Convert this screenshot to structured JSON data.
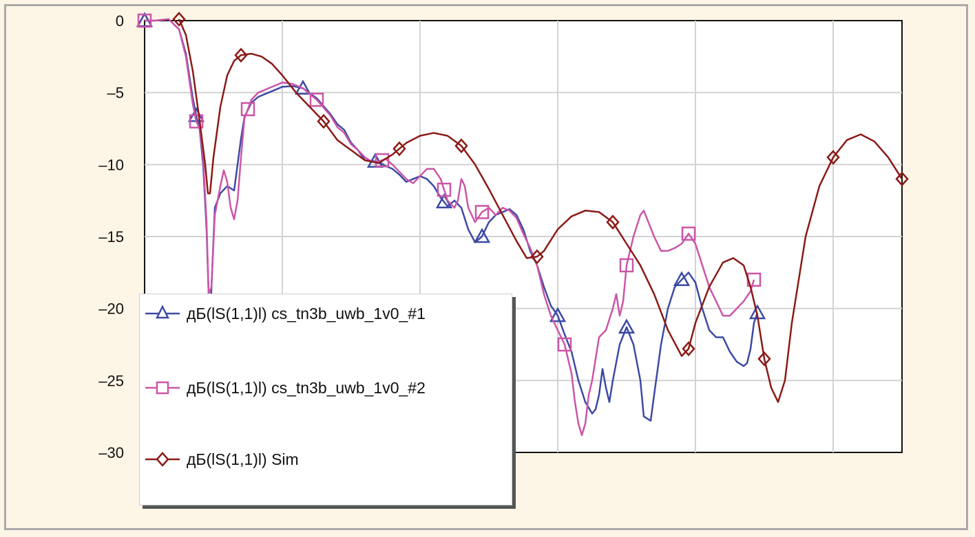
{
  "chart_data": {
    "type": "line",
    "title": "",
    "xlabel": "",
    "ylabel": "",
    "ylim": [
      -30,
      0
    ],
    "yticks": [
      0,
      -5,
      -10,
      -15,
      -20,
      -25,
      -30
    ],
    "ytick_labels": [
      "0",
      "–5",
      "–10",
      "–15",
      "–20",
      "–25",
      "–30"
    ],
    "x_domain": [
      0,
      11
    ],
    "x_ticks_unlabeled": [
      0,
      2,
      4,
      6,
      8,
      10
    ],
    "grid": true,
    "legend_position": "lower-left",
    "series": [
      {
        "name": "дБ(lS(1,1)l) cs_tn3b_uwb_1v0_#1",
        "color": "#3c4aa4",
        "marker": "triangle",
        "points": [
          [
            0.0,
            0.0
          ],
          [
            0.15,
            0.0
          ],
          [
            0.35,
            0.1
          ],
          [
            0.5,
            -0.6
          ],
          [
            0.6,
            -2.3
          ],
          [
            0.7,
            -5.4
          ],
          [
            0.75,
            -6.6
          ],
          [
            0.8,
            -7.6
          ],
          [
            0.85,
            -10.0
          ],
          [
            0.9,
            -14.5
          ],
          [
            0.93,
            -19.0
          ],
          [
            0.95,
            -21.0
          ],
          [
            0.98,
            -17.5
          ],
          [
            1.02,
            -13.0
          ],
          [
            1.1,
            -12.0
          ],
          [
            1.2,
            -11.5
          ],
          [
            1.3,
            -11.8
          ],
          [
            1.35,
            -10.0
          ],
          [
            1.4,
            -8.2
          ],
          [
            1.45,
            -6.7
          ],
          [
            1.55,
            -5.7
          ],
          [
            1.65,
            -5.3
          ],
          [
            1.8,
            -5.0
          ],
          [
            2.0,
            -4.6
          ],
          [
            2.15,
            -4.55
          ],
          [
            2.3,
            -4.7
          ],
          [
            2.5,
            -5.4
          ],
          [
            2.7,
            -6.5
          ],
          [
            2.8,
            -7.2
          ],
          [
            2.9,
            -7.6
          ],
          [
            3.0,
            -8.5
          ],
          [
            3.1,
            -9.0
          ],
          [
            3.2,
            -9.7
          ],
          [
            3.4,
            -9.8
          ],
          [
            3.5,
            -10.1
          ],
          [
            3.6,
            -10.3
          ],
          [
            3.7,
            -10.7
          ],
          [
            3.8,
            -11.2
          ],
          [
            3.9,
            -11.0
          ],
          [
            4.0,
            -10.8
          ],
          [
            4.1,
            -11.0
          ],
          [
            4.2,
            -11.5
          ],
          [
            4.3,
            -12.3
          ],
          [
            4.4,
            -12.9
          ],
          [
            4.5,
            -12.5
          ],
          [
            4.6,
            -13.0
          ],
          [
            4.7,
            -14.5
          ],
          [
            4.8,
            -15.4
          ],
          [
            4.9,
            -15.0
          ],
          [
            5.0,
            -14.0
          ],
          [
            5.1,
            -13.5
          ],
          [
            5.2,
            -13.3
          ],
          [
            5.3,
            -13.1
          ],
          [
            5.4,
            -13.5
          ],
          [
            5.5,
            -14.5
          ],
          [
            5.6,
            -16.0
          ],
          [
            5.7,
            -17.0
          ],
          [
            5.8,
            -18.5
          ],
          [
            5.9,
            -19.8
          ],
          [
            6.0,
            -20.5
          ],
          [
            6.1,
            -21.8
          ],
          [
            6.2,
            -23.0
          ],
          [
            6.3,
            -25.0
          ],
          [
            6.4,
            -26.5
          ],
          [
            6.5,
            -27.3
          ],
          [
            6.55,
            -27.0
          ],
          [
            6.6,
            -26.0
          ],
          [
            6.65,
            -24.2
          ],
          [
            6.7,
            -25.5
          ],
          [
            6.75,
            -26.5
          ],
          [
            6.8,
            -25.0
          ],
          [
            6.9,
            -22.5
          ],
          [
            7.0,
            -21.3
          ],
          [
            7.1,
            -22.5
          ],
          [
            7.2,
            -25.0
          ],
          [
            7.25,
            -27.5
          ],
          [
            7.35,
            -27.8
          ],
          [
            7.4,
            -26.0
          ],
          [
            7.5,
            -22.5
          ],
          [
            7.6,
            -20.0
          ],
          [
            7.7,
            -18.5
          ],
          [
            7.8,
            -18.0
          ],
          [
            7.9,
            -17.5
          ],
          [
            8.0,
            -18.2
          ],
          [
            8.1,
            -20.0
          ],
          [
            8.2,
            -21.5
          ],
          [
            8.3,
            -22.0
          ],
          [
            8.4,
            -22.0
          ],
          [
            8.5,
            -23.0
          ],
          [
            8.6,
            -23.7
          ],
          [
            8.7,
            -24.0
          ],
          [
            8.75,
            -23.8
          ],
          [
            8.8,
            -22.8
          ],
          [
            8.85,
            -21.0
          ],
          [
            8.9,
            -20.3
          ]
        ]
      },
      {
        "name": "дБ(lS(1,1)l) cs_tn3b_uwb_1v0_#2",
        "color": "#cc55a6",
        "marker": "square",
        "points": [
          [
            0.0,
            0.0
          ],
          [
            0.15,
            0.0
          ],
          [
            0.35,
            0.1
          ],
          [
            0.5,
            -0.6
          ],
          [
            0.6,
            -2.5
          ],
          [
            0.7,
            -5.8
          ],
          [
            0.75,
            -7.0
          ],
          [
            0.8,
            -7.5
          ],
          [
            0.85,
            -9.5
          ],
          [
            0.9,
            -14.0
          ],
          [
            0.93,
            -19.0
          ],
          [
            0.97,
            -18.5
          ],
          [
            1.02,
            -13.5
          ],
          [
            1.1,
            -11.5
          ],
          [
            1.15,
            -10.4
          ],
          [
            1.2,
            -11.2
          ],
          [
            1.25,
            -13.0
          ],
          [
            1.3,
            -13.8
          ],
          [
            1.35,
            -12.5
          ],
          [
            1.4,
            -9.5
          ],
          [
            1.45,
            -6.8
          ],
          [
            1.55,
            -5.5
          ],
          [
            1.65,
            -5.0
          ],
          [
            1.8,
            -4.7
          ],
          [
            2.0,
            -4.3
          ],
          [
            2.15,
            -4.4
          ],
          [
            2.3,
            -4.7
          ],
          [
            2.5,
            -5.5
          ],
          [
            2.7,
            -6.6
          ],
          [
            2.8,
            -7.4
          ],
          [
            2.9,
            -7.8
          ],
          [
            3.0,
            -8.6
          ],
          [
            3.1,
            -9.0
          ],
          [
            3.2,
            -9.5
          ],
          [
            3.3,
            -9.8
          ],
          [
            3.4,
            -9.8
          ],
          [
            3.5,
            -9.6
          ],
          [
            3.6,
            -10.0
          ],
          [
            3.7,
            -10.5
          ],
          [
            3.8,
            -11.0
          ],
          [
            3.9,
            -11.3
          ],
          [
            4.0,
            -10.8
          ],
          [
            4.1,
            -10.3
          ],
          [
            4.2,
            -10.3
          ],
          [
            4.3,
            -11.0
          ],
          [
            4.4,
            -12.5
          ],
          [
            4.5,
            -13.0
          ],
          [
            4.55,
            -12.5
          ],
          [
            4.6,
            -11.0
          ],
          [
            4.65,
            -11.5
          ],
          [
            4.7,
            -13.0
          ],
          [
            4.8,
            -14.0
          ],
          [
            4.9,
            -13.3
          ],
          [
            5.0,
            -13.0
          ],
          [
            5.1,
            -13.5
          ],
          [
            5.2,
            -13.0
          ],
          [
            5.3,
            -13.2
          ],
          [
            5.4,
            -13.7
          ],
          [
            5.5,
            -14.8
          ],
          [
            5.6,
            -15.8
          ],
          [
            5.7,
            -17.0
          ],
          [
            5.8,
            -19.0
          ],
          [
            5.9,
            -20.5
          ],
          [
            6.0,
            -21.5
          ],
          [
            6.1,
            -22.5
          ],
          [
            6.2,
            -24.5
          ],
          [
            6.25,
            -26.5
          ],
          [
            6.3,
            -28.0
          ],
          [
            6.35,
            -28.8
          ],
          [
            6.4,
            -28.0
          ],
          [
            6.45,
            -26.0
          ],
          [
            6.5,
            -25.0
          ],
          [
            6.6,
            -22.0
          ],
          [
            6.7,
            -21.5
          ],
          [
            6.8,
            -20.0
          ],
          [
            6.85,
            -19.0
          ],
          [
            6.9,
            -20.5
          ],
          [
            6.95,
            -19.5
          ],
          [
            7.0,
            -17.0
          ],
          [
            7.1,
            -15.0
          ],
          [
            7.2,
            -13.5
          ],
          [
            7.25,
            -13.2
          ],
          [
            7.3,
            -13.8
          ],
          [
            7.4,
            -15.0
          ],
          [
            7.5,
            -16.0
          ],
          [
            7.6,
            -16.0
          ],
          [
            7.7,
            -15.8
          ],
          [
            7.8,
            -15.5
          ],
          [
            7.9,
            -14.8
          ],
          [
            8.0,
            -15.5
          ],
          [
            8.1,
            -17.0
          ],
          [
            8.2,
            -18.5
          ],
          [
            8.3,
            -19.5
          ],
          [
            8.4,
            -20.5
          ],
          [
            8.5,
            -20.5
          ],
          [
            8.6,
            -20.0
          ],
          [
            8.7,
            -19.5
          ],
          [
            8.8,
            -18.8
          ],
          [
            8.85,
            -18.0
          ]
        ]
      },
      {
        "name": "дБ(lS(1,1)l) Sim",
        "color": "#8a1a16",
        "marker": "diamond",
        "points": [
          [
            0.5,
            0.1
          ],
          [
            0.6,
            -1.0
          ],
          [
            0.7,
            -3.5
          ],
          [
            0.8,
            -7.0
          ],
          [
            0.88,
            -10.0
          ],
          [
            0.92,
            -12.0
          ],
          [
            0.95,
            -12.0
          ],
          [
            1.0,
            -9.5
          ],
          [
            1.1,
            -6.0
          ],
          [
            1.2,
            -3.8
          ],
          [
            1.3,
            -2.8
          ],
          [
            1.4,
            -2.4
          ],
          [
            1.55,
            -2.3
          ],
          [
            1.7,
            -2.5
          ],
          [
            1.85,
            -3.0
          ],
          [
            2.0,
            -3.8
          ],
          [
            2.2,
            -5.0
          ],
          [
            2.4,
            -6.0
          ],
          [
            2.6,
            -7.0
          ],
          [
            2.8,
            -8.3
          ],
          [
            3.0,
            -9.0
          ],
          [
            3.2,
            -9.7
          ],
          [
            3.4,
            -9.9
          ],
          [
            3.6,
            -9.3
          ],
          [
            3.8,
            -8.5
          ],
          [
            4.0,
            -8.0
          ],
          [
            4.2,
            -7.8
          ],
          [
            4.4,
            -8.0
          ],
          [
            4.6,
            -8.7
          ],
          [
            4.8,
            -10.0
          ],
          [
            5.0,
            -11.7
          ],
          [
            5.2,
            -13.5
          ],
          [
            5.4,
            -15.3
          ],
          [
            5.55,
            -16.5
          ],
          [
            5.7,
            -16.4
          ],
          [
            5.8,
            -16.0
          ],
          [
            6.0,
            -14.5
          ],
          [
            6.2,
            -13.6
          ],
          [
            6.4,
            -13.2
          ],
          [
            6.6,
            -13.3
          ],
          [
            6.8,
            -14.0
          ],
          [
            7.0,
            -15.5
          ],
          [
            7.2,
            -17.0
          ],
          [
            7.4,
            -19.0
          ],
          [
            7.6,
            -21.5
          ],
          [
            7.8,
            -23.3
          ],
          [
            7.9,
            -22.8
          ],
          [
            8.0,
            -21.0
          ],
          [
            8.2,
            -18.5
          ],
          [
            8.4,
            -16.8
          ],
          [
            8.55,
            -16.5
          ],
          [
            8.7,
            -17.0
          ],
          [
            8.8,
            -18.5
          ],
          [
            8.9,
            -20.5
          ],
          [
            9.0,
            -23.5
          ],
          [
            9.1,
            -25.5
          ],
          [
            9.2,
            -26.5
          ],
          [
            9.3,
            -25.0
          ],
          [
            9.4,
            -21.0
          ],
          [
            9.6,
            -15.0
          ],
          [
            9.8,
            -11.5
          ],
          [
            10.0,
            -9.5
          ],
          [
            10.2,
            -8.3
          ],
          [
            10.4,
            -7.9
          ],
          [
            10.6,
            -8.4
          ],
          [
            10.8,
            -9.5
          ],
          [
            11.0,
            -11.0
          ]
        ]
      }
    ],
    "marker_positions": [
      [
        0.0,
        0.75,
        2.3,
        3.35,
        4.35,
        4.9,
        6.0,
        7.0,
        7.8,
        8.9
      ],
      [
        0.0,
        0.75,
        1.5,
        2.5,
        3.45,
        4.35,
        4.9,
        6.1,
        7.0,
        7.9,
        8.85
      ],
      [
        0.5,
        1.4,
        2.6,
        3.7,
        4.6,
        5.7,
        6.8,
        7.9,
        9.0,
        10.0,
        11.0
      ]
    ]
  }
}
